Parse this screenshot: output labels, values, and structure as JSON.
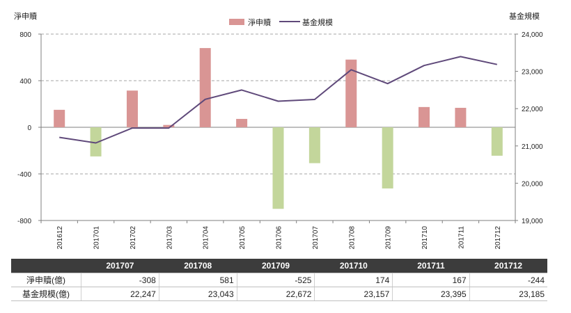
{
  "chart_data": {
    "type": "bar",
    "categories": [
      "201612",
      "201701",
      "201702",
      "201703",
      "201704",
      "201705",
      "201706",
      "201707",
      "201708",
      "201709",
      "201710",
      "201711",
      "201712"
    ],
    "series": [
      {
        "name": "淨申贖",
        "type": "bar",
        "axis": "left",
        "values": [
          150,
          -250,
          315,
          20,
          680,
          72,
          -700,
          -308,
          581,
          -525,
          174,
          167,
          -244
        ]
      },
      {
        "name": "基金規模",
        "type": "line",
        "axis": "right",
        "values": [
          21230,
          21080,
          21480,
          21480,
          22250,
          22500,
          22200,
          22247,
          23043,
          22672,
          23157,
          23395,
          23185
        ]
      }
    ],
    "left_axis": {
      "label": "淨申贖",
      "ylim": [
        -800,
        800
      ],
      "ticks": [
        800,
        400,
        0,
        -400,
        -800
      ]
    },
    "right_axis": {
      "label": "基金規模",
      "ylim": [
        19000,
        24000
      ],
      "ticks": [
        "24,000",
        "23,000",
        "22,000",
        "21,000",
        "20,000",
        "19,000"
      ]
    },
    "legend": {
      "placement": "top-center",
      "items": [
        "淨申贖",
        "基金規模"
      ]
    },
    "grid": "dashed-horizontal",
    "colors": {
      "positive": "#d99594",
      "negative": "#c3d69b",
      "line": "#5f497a",
      "header": "#3c3c3c"
    }
  },
  "table": {
    "columns": [
      "201707",
      "201708",
      "201709",
      "201710",
      "201711",
      "201712"
    ],
    "rows": [
      {
        "label": "淨申贖(億)",
        "values": [
          "-308",
          "581",
          "-525",
          "174",
          "167",
          "-244"
        ]
      },
      {
        "label": "基金規模(億)",
        "values": [
          "22,247",
          "23,043",
          "22,672",
          "23,157",
          "23,395",
          "23,185"
        ]
      }
    ]
  }
}
